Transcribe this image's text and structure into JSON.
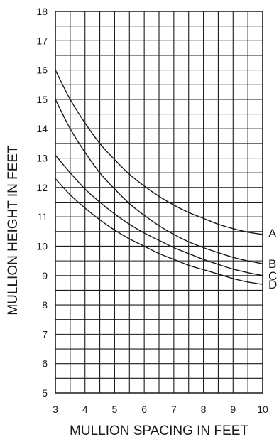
{
  "chart_data": {
    "type": "line",
    "title": "",
    "xlabel": "MULLION SPACING IN FEET",
    "ylabel": "MULLION HEIGHT IN FEET",
    "xlim": [
      3,
      10
    ],
    "ylim": [
      5,
      18
    ],
    "x_ticks": [
      "3",
      "4",
      "5",
      "6",
      "7",
      "8",
      "9",
      "10"
    ],
    "y_ticks": [
      "5",
      "6",
      "7",
      "8",
      "9",
      "10",
      "11",
      "12",
      "13",
      "14",
      "15",
      "16",
      "17",
      "18"
    ],
    "grid": {
      "on": true,
      "x_step": 0.5,
      "y_step": 0.5
    },
    "line_color": "#1a1a1a",
    "series": [
      {
        "name": "A",
        "x": [
          3,
          3.5,
          4,
          4.5,
          5,
          5.5,
          6,
          6.5,
          7,
          7.5,
          8,
          8.5,
          9,
          9.5,
          10
        ],
        "y": [
          16.0,
          15.0,
          14.2,
          13.5,
          12.95,
          12.45,
          12.05,
          11.7,
          11.4,
          11.15,
          10.95,
          10.75,
          10.6,
          10.48,
          10.4
        ]
      },
      {
        "name": "B",
        "x": [
          3,
          3.5,
          4,
          4.5,
          5,
          5.5,
          6,
          6.5,
          7,
          7.5,
          8,
          8.5,
          9,
          9.5,
          10
        ],
        "y": [
          15.0,
          14.0,
          13.2,
          12.5,
          11.95,
          11.45,
          11.05,
          10.7,
          10.4,
          10.15,
          9.95,
          9.78,
          9.62,
          9.5,
          9.4
        ]
      },
      {
        "name": "C",
        "x": [
          3,
          3.5,
          4,
          4.5,
          5,
          5.5,
          6,
          6.5,
          7,
          7.5,
          8,
          8.5,
          9,
          9.5,
          10
        ],
        "y": [
          13.1,
          12.5,
          11.95,
          11.5,
          11.1,
          10.75,
          10.45,
          10.2,
          9.95,
          9.75,
          9.55,
          9.38,
          9.22,
          9.1,
          9.0
        ]
      },
      {
        "name": "D",
        "x": [
          3,
          3.5,
          4,
          4.5,
          5,
          5.5,
          6,
          6.5,
          7,
          7.5,
          8,
          8.5,
          9,
          9.5,
          10
        ],
        "y": [
          12.3,
          11.75,
          11.3,
          10.9,
          10.55,
          10.25,
          10.0,
          9.75,
          9.55,
          9.35,
          9.2,
          9.05,
          8.9,
          8.78,
          8.7
        ]
      }
    ]
  }
}
